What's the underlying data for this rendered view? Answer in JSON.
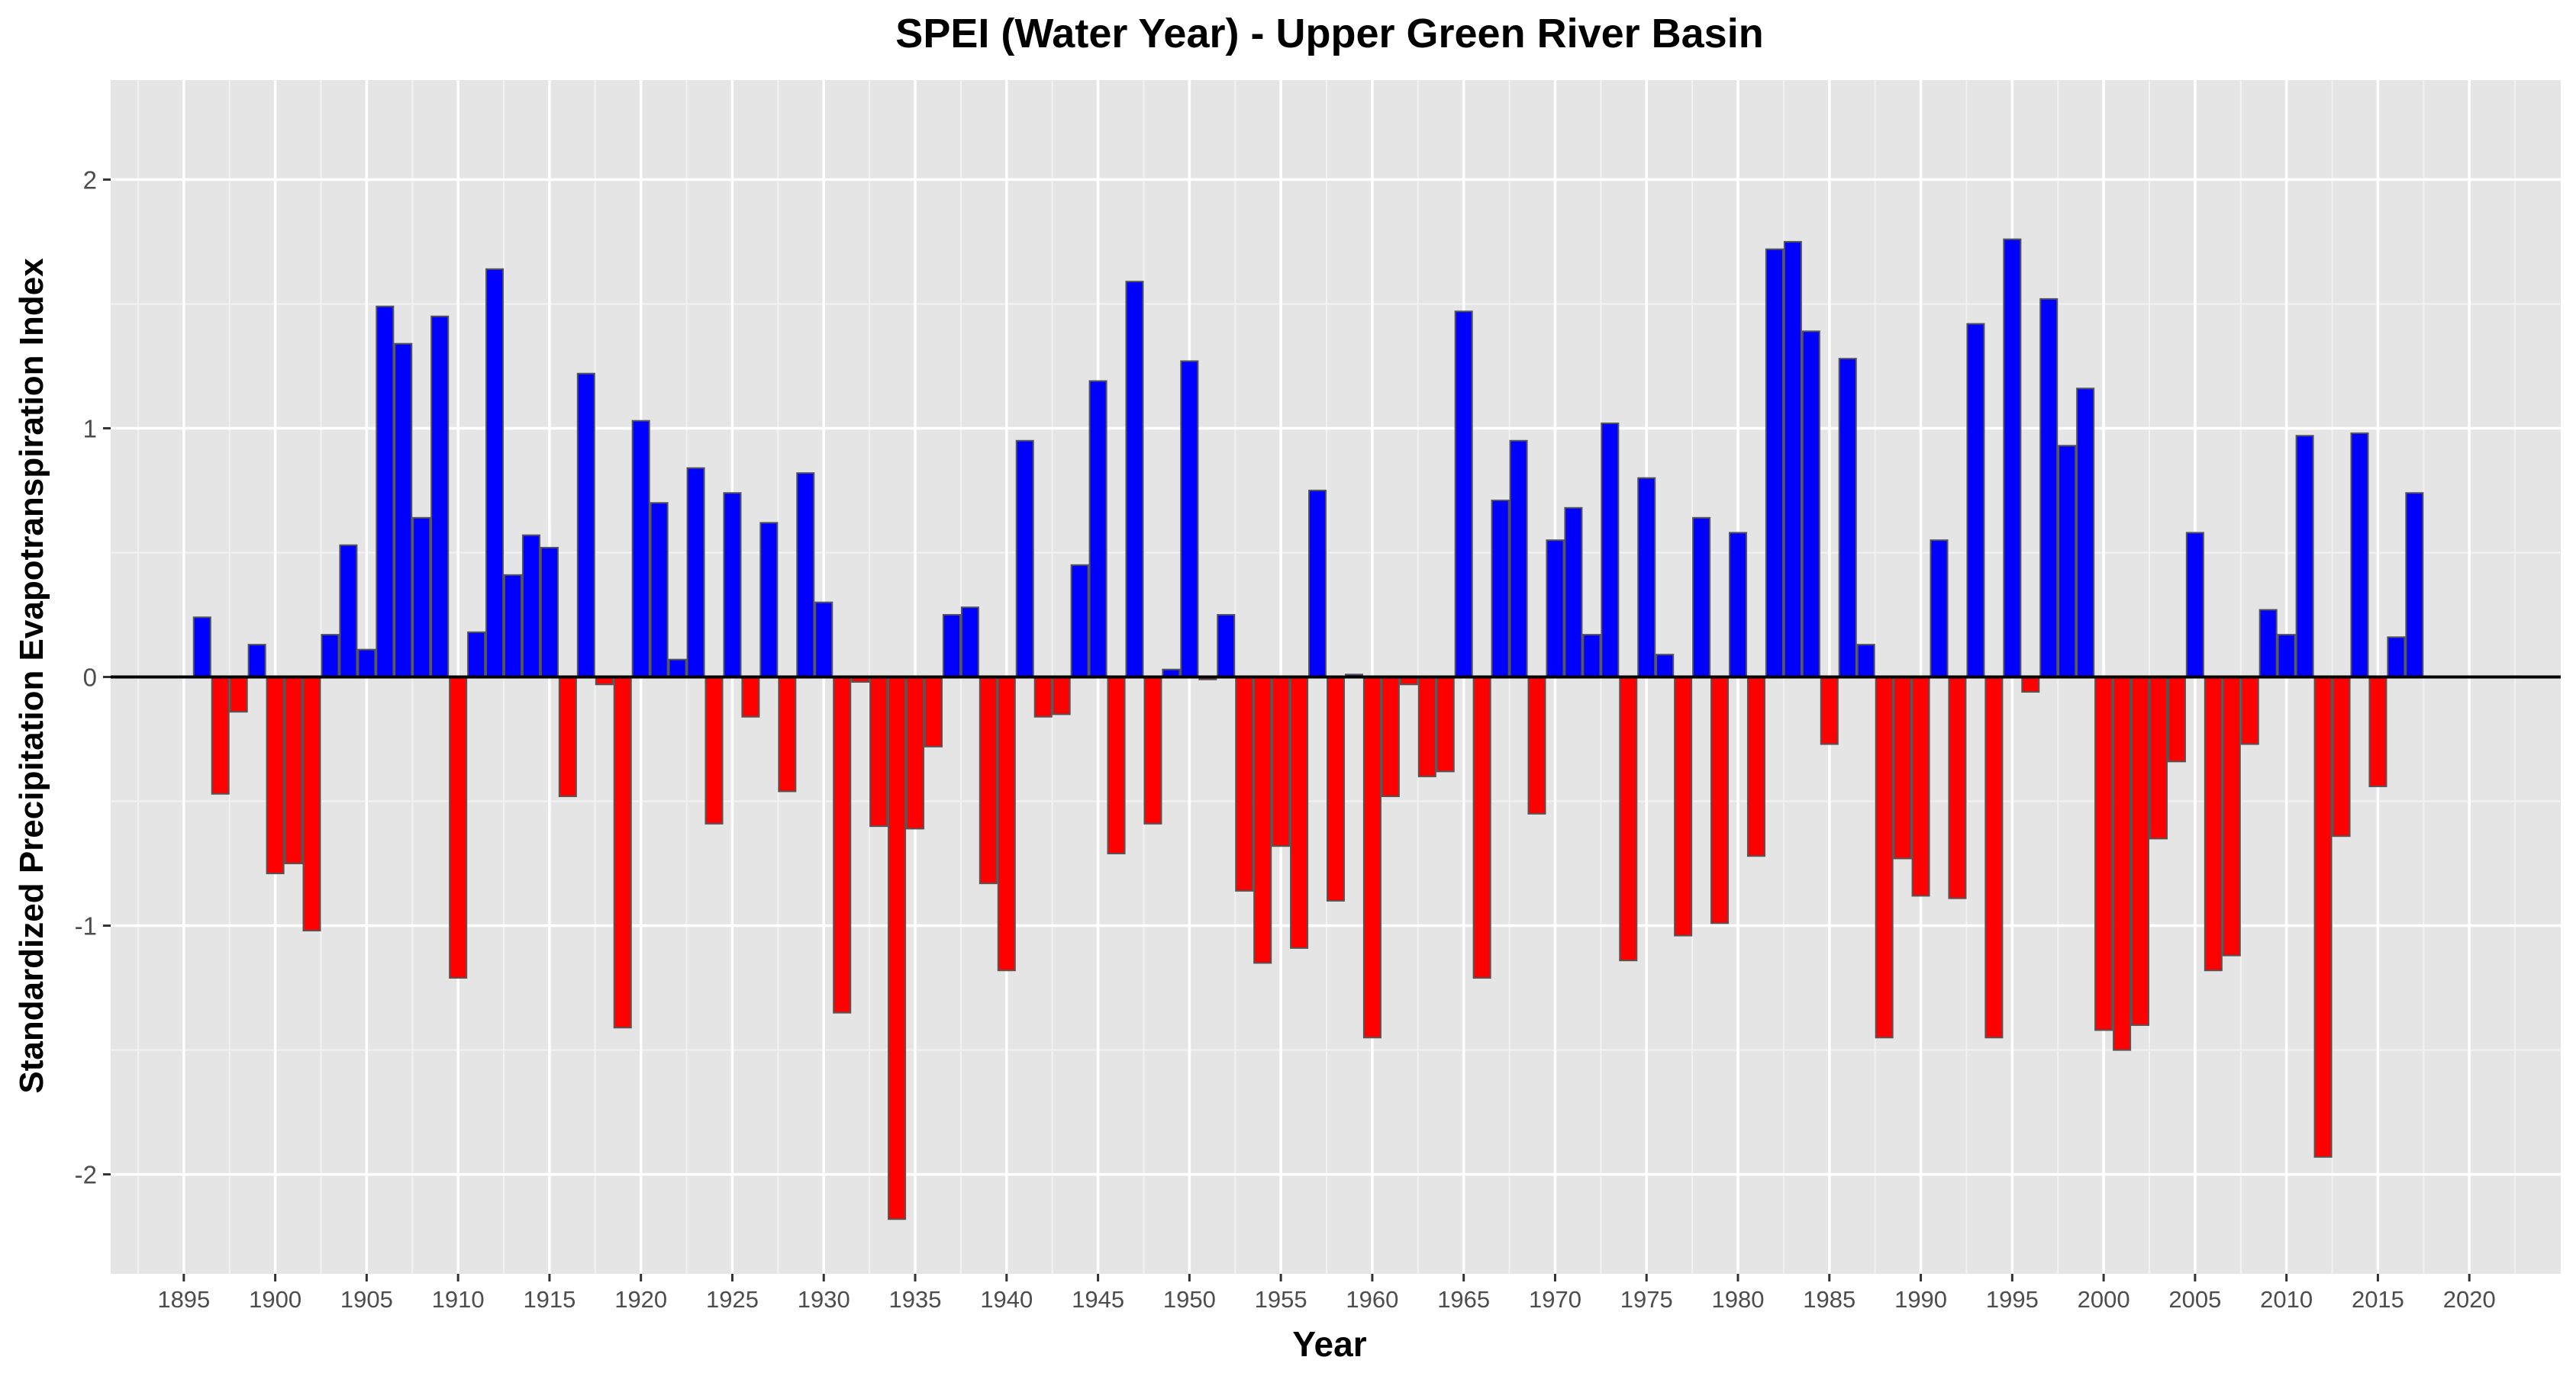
{
  "chart_data": {
    "type": "bar",
    "title": "SPEI (Water Year) - Upper Green River Basin",
    "xlabel": "Year",
    "ylabel": "Standardized Precipitation Evapotranspiration Index",
    "xlim": [
      1891,
      2025
    ],
    "ylim": [
      -2.4,
      2.4
    ],
    "grid": true,
    "x_ticks": [
      1895,
      1900,
      1905,
      1910,
      1915,
      1920,
      1925,
      1930,
      1935,
      1940,
      1945,
      1950,
      1955,
      1960,
      1965,
      1970,
      1975,
      1980,
      1985,
      1990,
      1995,
      2000,
      2005,
      2010,
      2015,
      2020
    ],
    "y_ticks": [
      -2,
      -1,
      0,
      1,
      2
    ],
    "positive_color": "#0000ff",
    "negative_color": "#ff0000",
    "bar_border_color": "#555555",
    "panel_background": "#e5e5e5",
    "x": [
      1896,
      1897,
      1898,
      1899,
      1900,
      1901,
      1902,
      1903,
      1904,
      1905,
      1906,
      1907,
      1908,
      1909,
      1910,
      1911,
      1912,
      1913,
      1914,
      1915,
      1916,
      1917,
      1918,
      1919,
      1920,
      1921,
      1922,
      1923,
      1924,
      1925,
      1926,
      1927,
      1928,
      1929,
      1930,
      1931,
      1932,
      1933,
      1934,
      1935,
      1936,
      1937,
      1938,
      1939,
      1940,
      1941,
      1942,
      1943,
      1944,
      1945,
      1946,
      1947,
      1948,
      1949,
      1950,
      1951,
      1952,
      1953,
      1954,
      1955,
      1956,
      1957,
      1958,
      1959,
      1960,
      1961,
      1962,
      1963,
      1964,
      1965,
      1966,
      1967,
      1968,
      1969,
      1970,
      1971,
      1972,
      1973,
      1974,
      1975,
      1976,
      1977,
      1978,
      1979,
      1980,
      1981,
      1982,
      1983,
      1984,
      1985,
      1986,
      1987,
      1988,
      1989,
      1990,
      1991,
      1992,
      1993,
      1994,
      1995,
      1996,
      1997,
      1998,
      1999,
      2000,
      2001,
      2002,
      2003,
      2004,
      2005,
      2006,
      2007,
      2008,
      2009,
      2010,
      2011,
      2012,
      2013,
      2014,
      2015,
      2016,
      2017
    ],
    "values": [
      0.24,
      -0.47,
      -0.14,
      0.13,
      -0.79,
      -0.75,
      -1.02,
      0.17,
      0.53,
      0.11,
      1.49,
      1.34,
      0.64,
      1.45,
      -1.21,
      0.18,
      1.64,
      0.41,
      0.57,
      0.52,
      -0.48,
      1.22,
      -0.03,
      -1.41,
      1.03,
      0.7,
      0.07,
      0.84,
      -0.59,
      0.74,
      -0.16,
      0.62,
      -0.46,
      0.82,
      0.3,
      -1.35,
      -0.02,
      -0.6,
      -2.18,
      -0.61,
      -0.28,
      0.25,
      0.28,
      -0.83,
      -1.18,
      0.95,
      -0.16,
      -0.15,
      0.45,
      1.19,
      -0.71,
      1.59,
      -0.59,
      0.03,
      1.27,
      -0.01,
      0.25,
      -0.86,
      -1.15,
      -0.68,
      -1.09,
      0.75,
      -0.9,
      0.01,
      -1.45,
      -0.48,
      -0.03,
      -0.4,
      -0.38,
      1.47,
      -1.21,
      0.71,
      0.95,
      -0.55,
      0.55,
      0.68,
      0.17,
      1.02,
      -1.14,
      0.8,
      0.09,
      -1.04,
      0.64,
      -0.99,
      0.58,
      -0.72,
      1.72,
      1.75,
      1.39,
      -0.27,
      1.28,
      0.13,
      -1.45,
      -0.73,
      -0.88,
      0.55,
      -0.89,
      1.42,
      -1.45,
      1.76,
      -0.06,
      1.52,
      0.93,
      1.16,
      -1.42,
      -1.5,
      -1.4,
      -0.65,
      -0.34,
      0.58,
      -1.18,
      -1.12,
      -0.27,
      0.27,
      0.17,
      0.97,
      -1.93,
      -0.64,
      0.98,
      -0.44,
      0.16,
      0.74
    ]
  }
}
